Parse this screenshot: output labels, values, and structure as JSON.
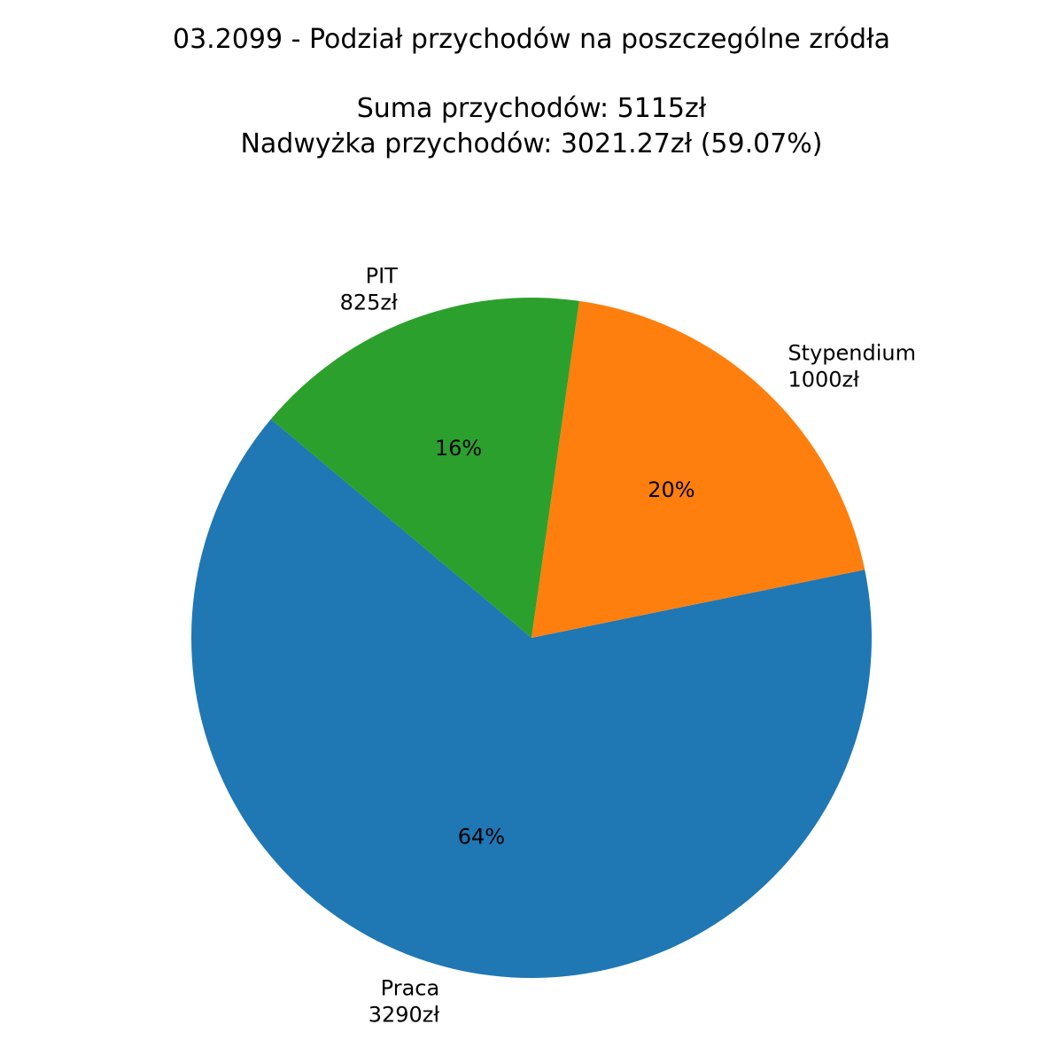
{
  "chart_data": {
    "type": "pie",
    "title_lines": [
      "03.2099 - Podział przychodów na poszczególne zródła",
      "",
      "Suma przychodów: 5115zł",
      "Nadwyżka przychodów: 3021.27zł (59.07%)"
    ],
    "slices": [
      {
        "name": "Praca",
        "value": 3290,
        "value_label": "3290zł",
        "pct_label": "64%",
        "color": "#1f77b4"
      },
      {
        "name": "Stypendium",
        "value": 1000,
        "value_label": "1000zł",
        "pct_label": "20%",
        "color": "#ff7f0e"
      },
      {
        "name": "PIT",
        "value": 825,
        "value_label": "825zł",
        "pct_label": "16%",
        "color": "#2ca02c"
      }
    ],
    "start_angle_deg": 140,
    "direction": "counterclockwise",
    "legend": "none"
  }
}
